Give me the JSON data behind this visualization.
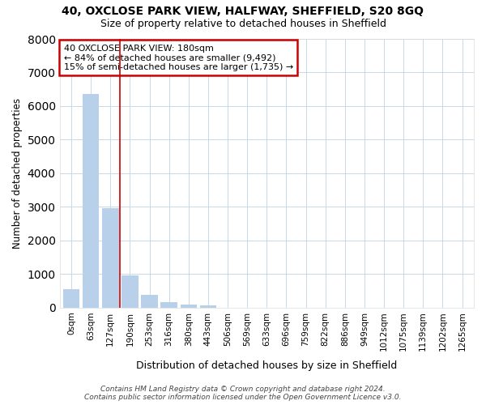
{
  "title1": "40, OXCLOSE PARK VIEW, HALFWAY, SHEFFIELD, S20 8GQ",
  "title2": "Size of property relative to detached houses in Sheffield",
  "xlabel": "Distribution of detached houses by size in Sheffield",
  "ylabel": "Number of detached properties",
  "annotation_line1": "40 OXCLOSE PARK VIEW: 180sqm",
  "annotation_line2": "← 84% of detached houses are smaller (9,492)",
  "annotation_line3": "15% of semi-detached houses are larger (1,735) →",
  "categories": [
    "0sqm",
    "63sqm",
    "127sqm",
    "190sqm",
    "253sqm",
    "316sqm",
    "380sqm",
    "443sqm",
    "506sqm",
    "569sqm",
    "633sqm",
    "696sqm",
    "759sqm",
    "822sqm",
    "886sqm",
    "949sqm",
    "1012sqm",
    "1075sqm",
    "1139sqm",
    "1202sqm",
    "1265sqm"
  ],
  "values": [
    550,
    6350,
    2950,
    950,
    380,
    160,
    80,
    60,
    0,
    0,
    0,
    0,
    0,
    0,
    0,
    0,
    0,
    0,
    0,
    0,
    0
  ],
  "bar_color": "#b8d0ea",
  "vline_color": "#cc0000",
  "vline_x_index": 2.5,
  "annotation_box_color": "#cc0000",
  "background_color": "#ffffff",
  "grid_color": "#c8d8e8",
  "footnote": "Contains HM Land Registry data © Crown copyright and database right 2024.\nContains public sector information licensed under the Open Government Licence v3.0.",
  "ylim": [
    0,
    8000
  ],
  "yticks": [
    0,
    1000,
    2000,
    3000,
    4000,
    5000,
    6000,
    7000,
    8000
  ]
}
